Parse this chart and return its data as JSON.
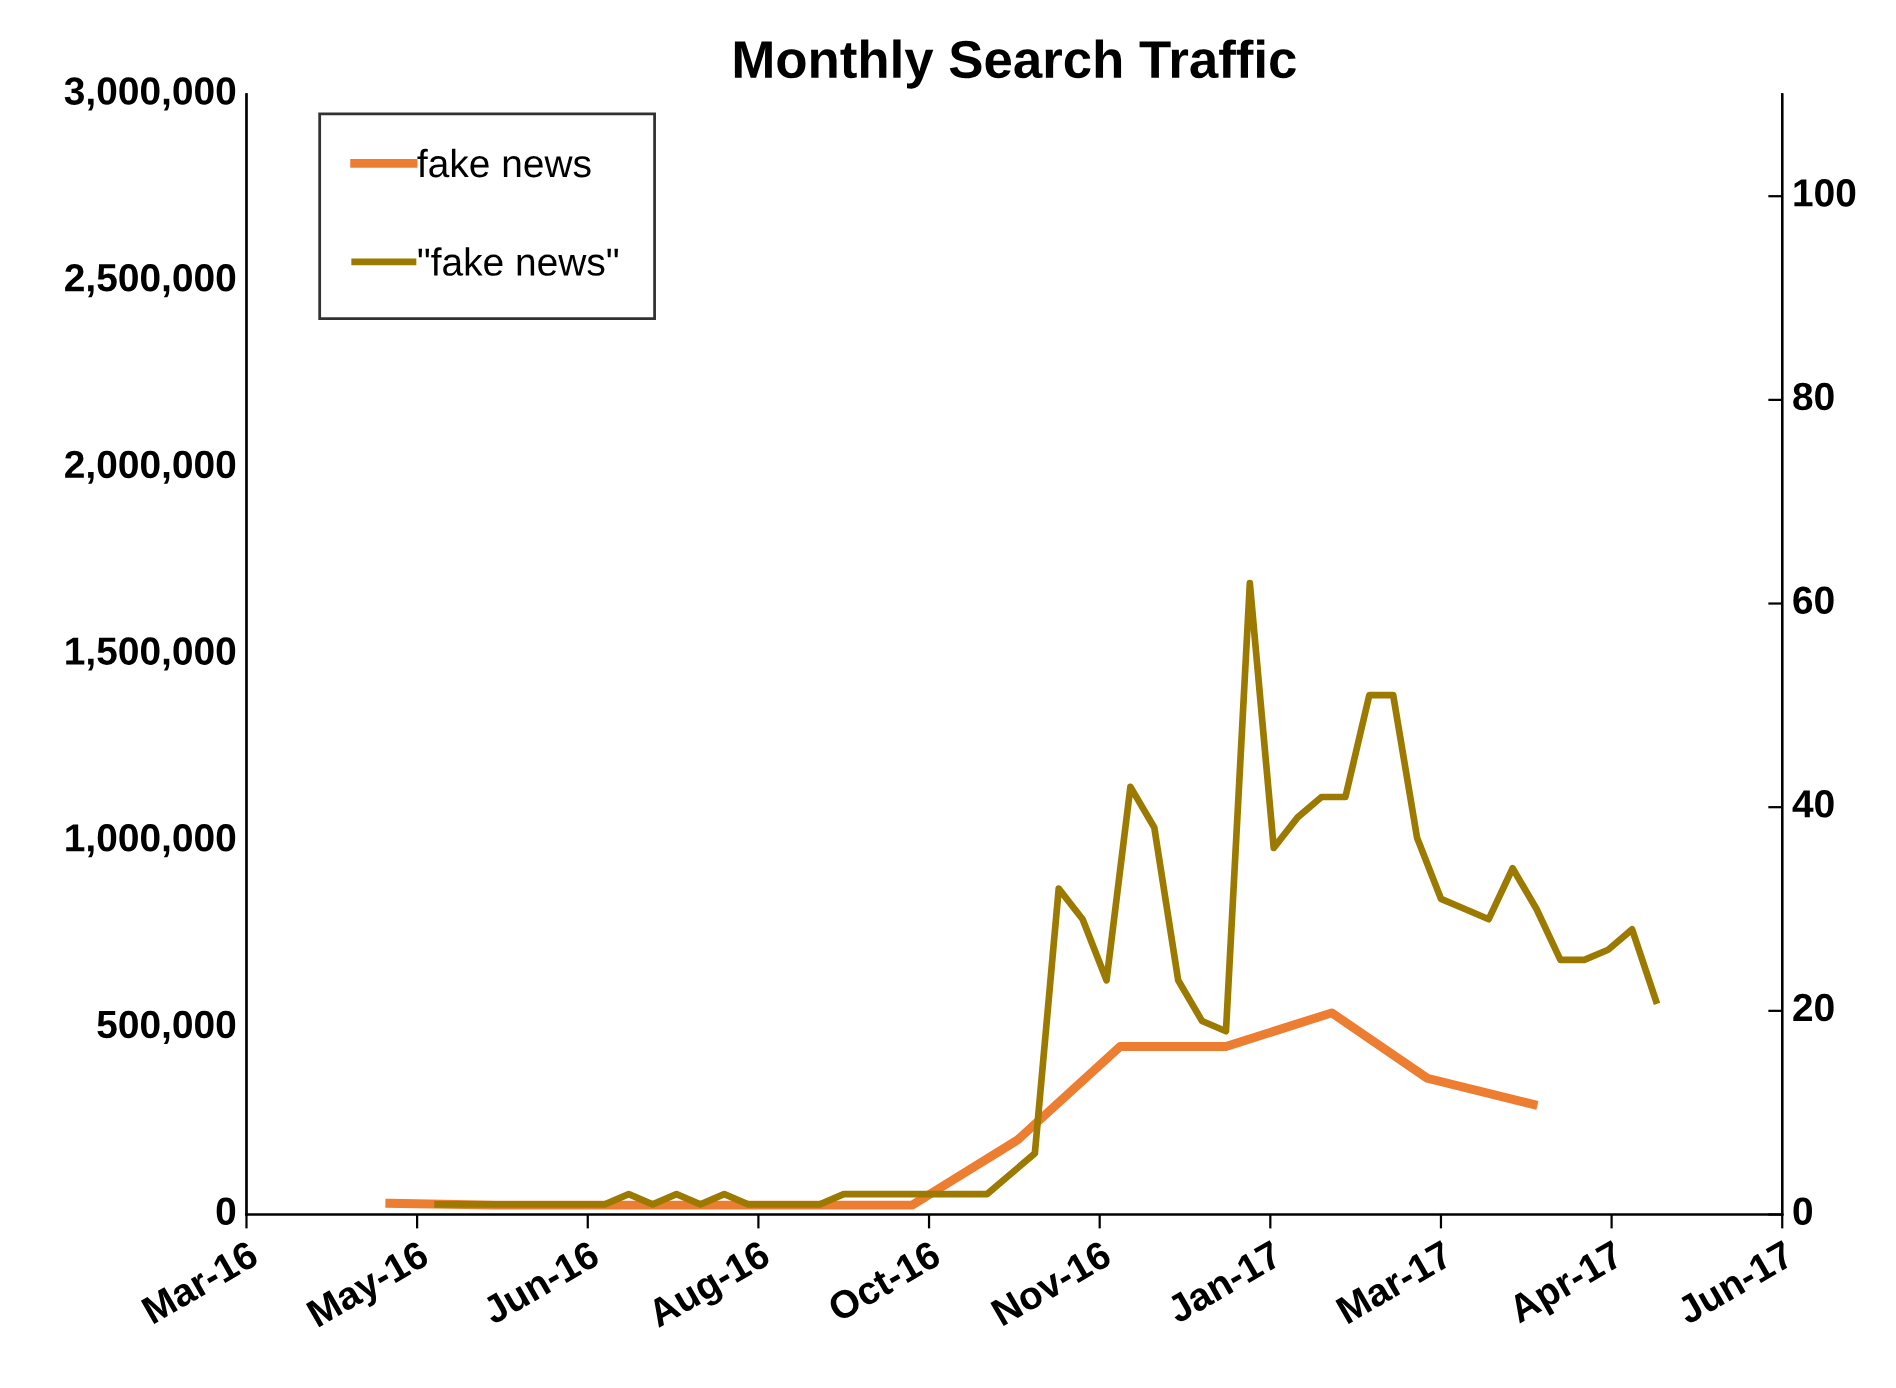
{
  "chart_data": {
    "type": "line",
    "title": "Monthly Search Traffic",
    "legend": "top left",
    "grid": false,
    "marker": "none",
    "line_style": "solid",
    "xlim": [
      "2016-03-20",
      "2017-06-13"
    ],
    "xticks": [
      {
        "value": "2016-03-20",
        "label": "Mar-16"
      },
      {
        "value": "2016-05-09",
        "label": "May-16"
      },
      {
        "value": "2016-06-28",
        "label": "Jun-16"
      },
      {
        "value": "2016-08-17",
        "label": "Aug-16"
      },
      {
        "value": "2016-10-06",
        "label": "Oct-16"
      },
      {
        "value": "2016-11-25",
        "label": "Nov-16"
      },
      {
        "value": "2017-01-14",
        "label": "Jan-17"
      },
      {
        "value": "2017-03-05",
        "label": "Mar-17"
      },
      {
        "value": "2017-04-24",
        "label": "Apr-17"
      },
      {
        "value": "2017-06-13",
        "label": "Jun-17"
      }
    ],
    "ylim": [
      0,
      3000000
    ],
    "yticks": [
      0,
      {
        "value": 500000,
        "label": "500,000"
      },
      {
        "value": 1000000,
        "label": "1,000,000"
      },
      {
        "value": 1500000,
        "label": "1,500,000"
      },
      {
        "value": 2000000,
        "label": "2,000,000"
      },
      {
        "value": 2500000,
        "label": "2,500,000"
      },
      {
        "value": 3000000,
        "label": "3,000,000"
      }
    ],
    "y2lim": [
      0,
      110
    ],
    "y2ticks": [
      0,
      20,
      40,
      60,
      80,
      100
    ],
    "series": [
      {
        "name": "fake news",
        "color": "#ed7d31",
        "x": [
          "2016-05-01",
          "2016-06-01",
          "2016-07-01",
          "2016-08-01",
          "2016-09-01",
          "2016-10-01",
          "2016-11-01",
          "2016-12-01",
          "2017-01-01",
          "2017-02-01",
          "2017-03-01",
          "2017-04-01"
        ],
        "values": [
          30000,
          25000,
          25000,
          25000,
          25000,
          25000,
          200000,
          450000,
          450000,
          540000,
          365000,
          295000
        ]
      },
      {
        "name": "\"fake news\"",
        "color": "#9c7a00",
        "axis": "y2",
        "x": [
          "2016-05-15",
          "2016-05-22",
          "2016-05-29",
          "2016-06-05",
          "2016-06-12",
          "2016-06-19",
          "2016-06-26",
          "2016-07-03",
          "2016-07-10",
          "2016-07-17",
          "2016-07-24",
          "2016-07-31",
          "2016-08-07",
          "2016-08-14",
          "2016-08-21",
          "2016-08-28",
          "2016-09-04",
          "2016-09-11",
          "2016-09-18",
          "2016-09-25",
          "2016-10-02",
          "2016-10-09",
          "2016-10-16",
          "2016-10-23",
          "2016-10-30",
          "2016-11-06",
          "2016-11-13",
          "2016-11-20",
          "2016-11-27",
          "2016-12-04",
          "2016-12-11",
          "2016-12-18",
          "2016-12-25",
          "2017-01-01",
          "2017-01-08",
          "2017-01-15",
          "2017-01-22",
          "2017-01-29",
          "2017-02-05",
          "2017-02-12",
          "2017-02-19",
          "2017-02-26",
          "2017-03-05",
          "2017-03-12",
          "2017-03-19",
          "2017-03-26",
          "2017-04-02",
          "2017-04-09",
          "2017-04-16",
          "2017-04-23",
          "2017-04-30",
          "2017-05-07"
        ],
        "values": [
          1,
          1,
          1,
          1,
          1,
          1,
          1,
          1,
          2,
          1,
          2,
          1,
          2,
          1,
          1,
          1,
          1,
          2,
          2,
          2,
          2,
          2,
          2,
          2,
          4,
          6,
          32,
          29,
          23,
          42,
          38,
          23,
          19,
          18,
          62,
          36,
          39,
          41,
          41,
          51,
          51,
          37,
          31,
          30,
          29,
          34,
          30,
          25,
          25,
          26,
          28,
          21
        ]
      }
    ]
  }
}
